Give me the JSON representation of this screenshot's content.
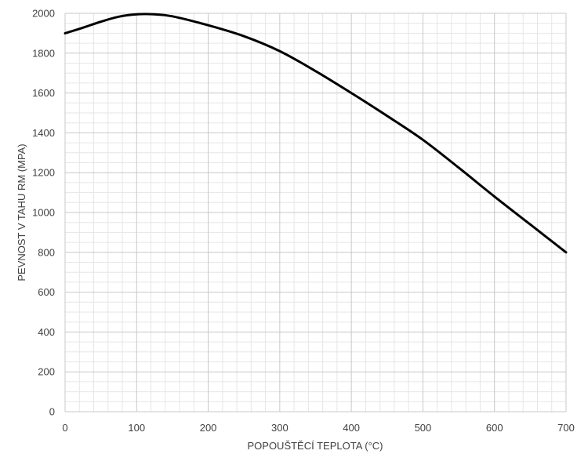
{
  "chart_data": {
    "type": "line",
    "title": "",
    "xlabel": "POPOUŠTĚCÍ TEPLOTA (°C)",
    "ylabel": "PEVNOST V TAHU RM (MPA)",
    "xlim": [
      0,
      700
    ],
    "ylim": [
      0,
      2000
    ],
    "x_ticks": [
      0,
      100,
      200,
      300,
      400,
      500,
      600,
      700
    ],
    "y_ticks": [
      0,
      200,
      400,
      600,
      800,
      1000,
      1200,
      1400,
      1600,
      1800,
      2000
    ],
    "grid": true,
    "minor_grid": true,
    "line_color": "#000000",
    "series": [
      {
        "x": [
          0,
          25,
          50,
          75,
          100,
          125,
          150,
          200,
          250,
          300,
          350,
          400,
          450,
          500,
          550,
          600,
          650,
          700
        ],
        "values": [
          1900,
          1928,
          1958,
          1983,
          1995,
          1995,
          1985,
          1940,
          1885,
          1810,
          1710,
          1600,
          1485,
          1365,
          1225,
          1080,
          940,
          800
        ]
      }
    ]
  }
}
